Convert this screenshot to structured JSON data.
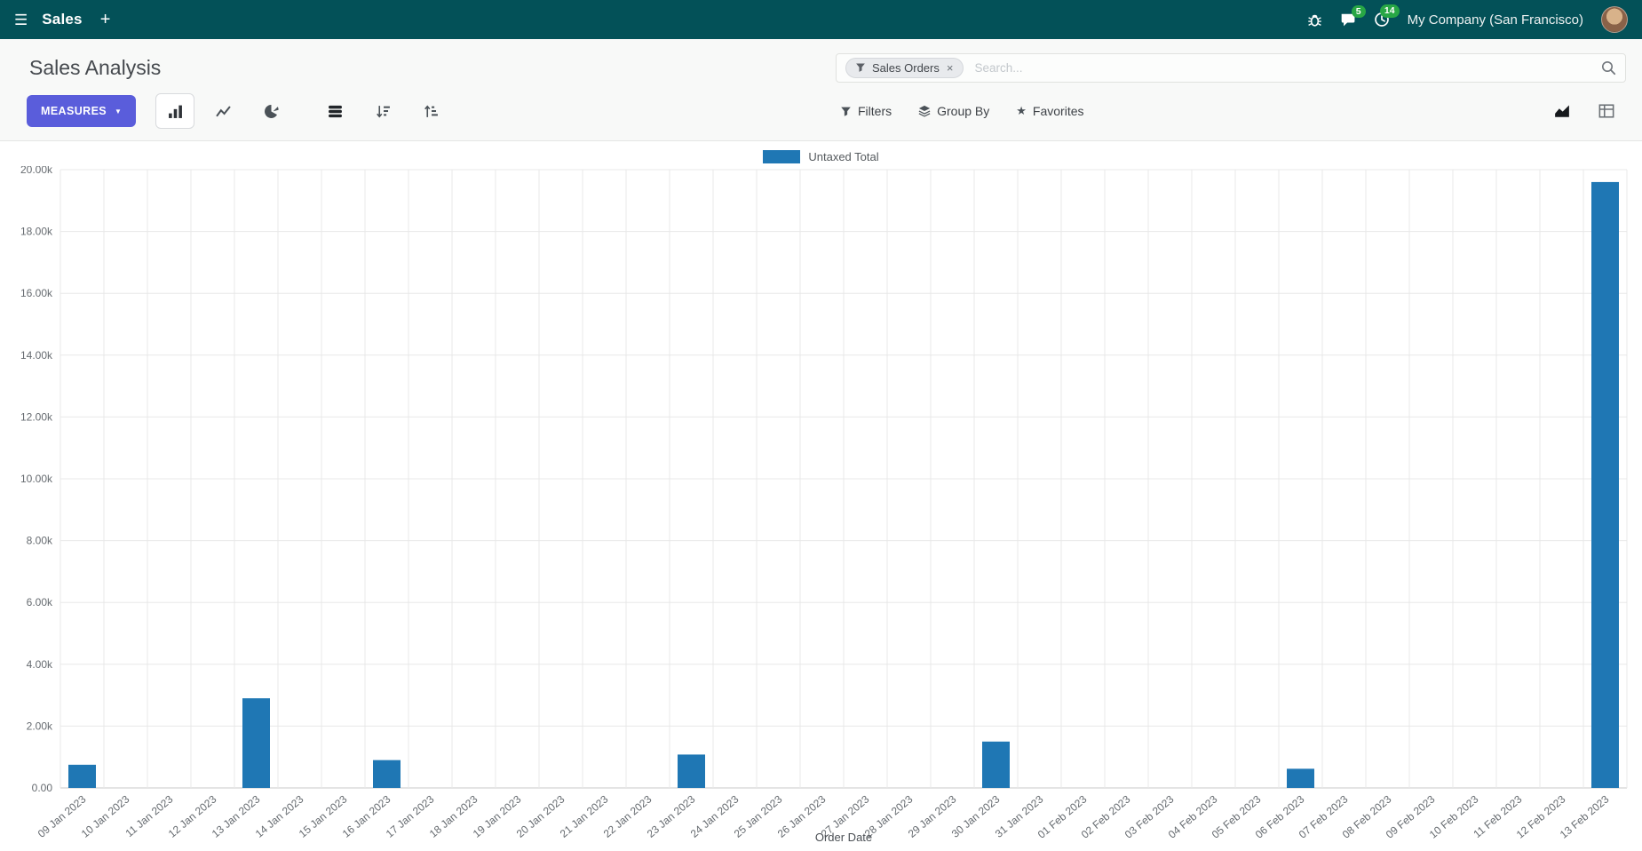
{
  "colors": {
    "navbar_bg": "#035158",
    "accent": "#5a5ddb",
    "badge": "#28a745",
    "bar": "#1f77b4"
  },
  "icons": {
    "hamburger": "☰",
    "plus": "+",
    "caret_down": "▼",
    "star": "★",
    "close": "×"
  },
  "navbar": {
    "app_name": "Sales",
    "messages_badge": "5",
    "activities_badge": "14",
    "company": "My Company (San Francisco)"
  },
  "control_panel": {
    "title": "Sales Analysis",
    "measures_label": "MEASURES",
    "search": {
      "facet_label": "Sales Orders",
      "placeholder": "Search..."
    },
    "filters_label": "Filters",
    "group_by_label": "Group By",
    "favorites_label": "Favorites"
  },
  "chart_data": {
    "type": "bar",
    "title": "",
    "xlabel": "Order Date",
    "ylabel": "",
    "ylim": [
      0,
      20000
    ],
    "ytick_step": 2000,
    "grid": true,
    "legend_position": "top",
    "categories": [
      "09 Jan 2023",
      "10 Jan 2023",
      "11 Jan 2023",
      "12 Jan 2023",
      "13 Jan 2023",
      "14 Jan 2023",
      "15 Jan 2023",
      "16 Jan 2023",
      "17 Jan 2023",
      "18 Jan 2023",
      "19 Jan 2023",
      "20 Jan 2023",
      "21 Jan 2023",
      "22 Jan 2023",
      "23 Jan 2023",
      "24 Jan 2023",
      "25 Jan 2023",
      "26 Jan 2023",
      "27 Jan 2023",
      "28 Jan 2023",
      "29 Jan 2023",
      "30 Jan 2023",
      "31 Jan 2023",
      "01 Feb 2023",
      "02 Feb 2023",
      "03 Feb 2023",
      "04 Feb 2023",
      "05 Feb 2023",
      "06 Feb 2023",
      "07 Feb 2023",
      "08 Feb 2023",
      "09 Feb 2023",
      "10 Feb 2023",
      "11 Feb 2023",
      "12 Feb 2023",
      "13 Feb 2023"
    ],
    "series": [
      {
        "name": "Untaxed Total",
        "color": "#1f77b4",
        "values": [
          750,
          0,
          0,
          0,
          2900,
          0,
          0,
          900,
          0,
          0,
          0,
          0,
          0,
          0,
          1080,
          0,
          0,
          0,
          0,
          0,
          0,
          1500,
          0,
          0,
          0,
          0,
          0,
          0,
          620,
          0,
          0,
          0,
          0,
          0,
          0,
          19600
        ]
      }
    ]
  }
}
